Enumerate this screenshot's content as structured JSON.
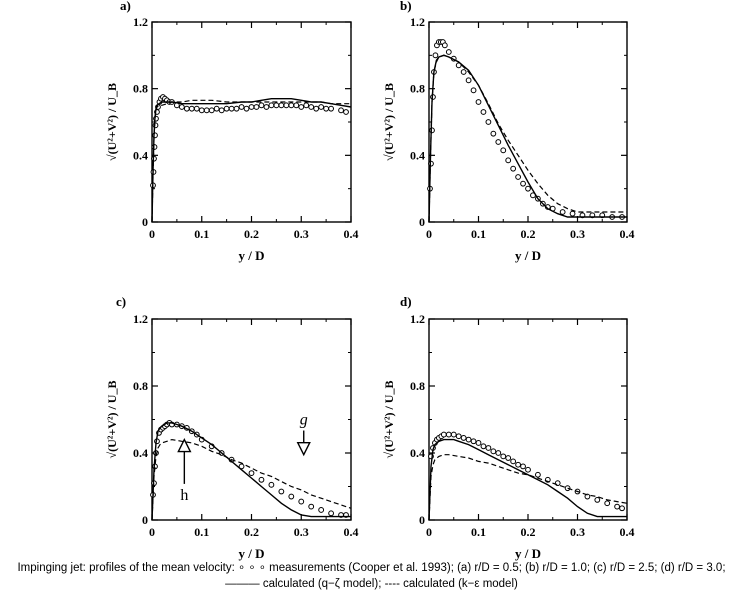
{
  "figure": {
    "caption_text": "Impinging jet: profiles of the mean velocity: ∘ ∘ ∘ measurements (Cooper et al. 1993); (a) r/D = 0.5; (b) r/D = 1.0; (c) r/D = 2.5; (d) r/D = 3.0; ——— calculated (q−ζ model); ---- calculated (k−ε model)"
  },
  "chart_data": [
    {
      "panel_label": "a)",
      "type": "line",
      "xlabel": "y / D",
      "ylabel": "√(U²+V²) / U_B",
      "xlim": [
        0,
        0.4
      ],
      "ylim": [
        0,
        1.2
      ],
      "xticks": [
        "0",
        "0.1",
        "0.2",
        "0.3",
        "0.4"
      ],
      "yticks": [
        "0",
        "0.4",
        "0.8",
        "1.2"
      ],
      "annotations": [],
      "series": [
        {
          "style": "markers-open-circle",
          "x": [
            0.002,
            0.003,
            0.004,
            0.005,
            0.006,
            0.007,
            0.008,
            0.01,
            0.012,
            0.015,
            0.018,
            0.022,
            0.026,
            0.03,
            0.035,
            0.04,
            0.05,
            0.06,
            0.07,
            0.08,
            0.09,
            0.1,
            0.11,
            0.12,
            0.13,
            0.14,
            0.15,
            0.16,
            0.17,
            0.18,
            0.19,
            0.2,
            0.21,
            0.22,
            0.23,
            0.24,
            0.25,
            0.26,
            0.27,
            0.28,
            0.29,
            0.3,
            0.31,
            0.32,
            0.33,
            0.34,
            0.35,
            0.36,
            0.38,
            0.39
          ],
          "y": [
            0.22,
            0.3,
            0.38,
            0.45,
            0.52,
            0.58,
            0.62,
            0.66,
            0.69,
            0.72,
            0.74,
            0.75,
            0.74,
            0.73,
            0.72,
            0.72,
            0.7,
            0.69,
            0.68,
            0.68,
            0.68,
            0.67,
            0.67,
            0.67,
            0.68,
            0.67,
            0.68,
            0.68,
            0.68,
            0.69,
            0.68,
            0.69,
            0.69,
            0.7,
            0.69,
            0.7,
            0.7,
            0.7,
            0.7,
            0.7,
            0.7,
            0.69,
            0.7,
            0.69,
            0.68,
            0.69,
            0.68,
            0.68,
            0.67,
            0.66
          ]
        },
        {
          "style": "solid",
          "x": [
            0,
            0.002,
            0.004,
            0.006,
            0.008,
            0.01,
            0.014,
            0.02,
            0.03,
            0.04,
            0.06,
            0.08,
            0.1,
            0.12,
            0.15,
            0.18,
            0.2,
            0.22,
            0.24,
            0.26,
            0.28,
            0.3,
            0.32,
            0.34,
            0.36,
            0.38,
            0.4
          ],
          "y": [
            0,
            0.3,
            0.52,
            0.63,
            0.68,
            0.7,
            0.71,
            0.72,
            0.72,
            0.72,
            0.71,
            0.71,
            0.71,
            0.71,
            0.71,
            0.72,
            0.72,
            0.73,
            0.74,
            0.74,
            0.74,
            0.73,
            0.72,
            0.72,
            0.71,
            0.7,
            0.69
          ]
        },
        {
          "style": "dashed",
          "x": [
            0,
            0.002,
            0.004,
            0.006,
            0.008,
            0.01,
            0.014,
            0.02,
            0.03,
            0.04,
            0.06,
            0.08,
            0.1,
            0.12,
            0.15,
            0.18,
            0.2,
            0.22,
            0.24,
            0.26,
            0.28,
            0.3,
            0.32,
            0.34,
            0.36,
            0.38,
            0.4
          ],
          "y": [
            0,
            0.28,
            0.5,
            0.62,
            0.67,
            0.69,
            0.7,
            0.7,
            0.71,
            0.72,
            0.72,
            0.73,
            0.73,
            0.73,
            0.72,
            0.72,
            0.72,
            0.72,
            0.72,
            0.72,
            0.72,
            0.72,
            0.72,
            0.72,
            0.71,
            0.71,
            0.71
          ]
        }
      ]
    },
    {
      "panel_label": "b)",
      "type": "line",
      "xlabel": "y / D",
      "ylabel": "√(U²+V²) / U_B",
      "xlim": [
        0,
        0.4
      ],
      "ylim": [
        0,
        1.2
      ],
      "xticks": [
        "0",
        "0.1",
        "0.2",
        "0.3",
        "0.4"
      ],
      "yticks": [
        "0",
        "0.4",
        "0.8",
        "1.2"
      ],
      "annotations": [],
      "series": [
        {
          "style": "markers-open-circle",
          "x": [
            0.002,
            0.004,
            0.006,
            0.008,
            0.01,
            0.013,
            0.016,
            0.02,
            0.024,
            0.028,
            0.032,
            0.04,
            0.05,
            0.06,
            0.07,
            0.08,
            0.09,
            0.1,
            0.11,
            0.12,
            0.13,
            0.14,
            0.15,
            0.16,
            0.17,
            0.18,
            0.19,
            0.2,
            0.21,
            0.22,
            0.23,
            0.24,
            0.25,
            0.27,
            0.29,
            0.31,
            0.33,
            0.35,
            0.37,
            0.39
          ],
          "y": [
            0.2,
            0.35,
            0.55,
            0.75,
            0.9,
            1.0,
            1.06,
            1.08,
            1.08,
            1.08,
            1.06,
            1.02,
            0.98,
            0.94,
            0.9,
            0.85,
            0.79,
            0.72,
            0.66,
            0.6,
            0.53,
            0.48,
            0.43,
            0.37,
            0.32,
            0.27,
            0.23,
            0.2,
            0.16,
            0.14,
            0.11,
            0.09,
            0.08,
            0.06,
            0.05,
            0.04,
            0.04,
            0.04,
            0.03,
            0.03
          ]
        },
        {
          "style": "solid",
          "x": [
            0,
            0.003,
            0.006,
            0.01,
            0.015,
            0.02,
            0.03,
            0.04,
            0.06,
            0.08,
            0.1,
            0.12,
            0.14,
            0.16,
            0.18,
            0.2,
            0.22,
            0.24,
            0.26,
            0.28,
            0.3,
            0.32,
            0.34,
            0.36,
            0.38,
            0.4
          ],
          "y": [
            0,
            0.4,
            0.72,
            0.9,
            0.97,
            0.99,
            1.0,
            0.99,
            0.96,
            0.91,
            0.82,
            0.7,
            0.58,
            0.46,
            0.35,
            0.24,
            0.14,
            0.08,
            0.05,
            0.03,
            0.03,
            0.03,
            0.03,
            0.03,
            0.03,
            0.03
          ]
        },
        {
          "style": "dashed",
          "x": [
            0,
            0.003,
            0.006,
            0.01,
            0.015,
            0.02,
            0.03,
            0.04,
            0.06,
            0.08,
            0.1,
            0.12,
            0.14,
            0.16,
            0.18,
            0.2,
            0.22,
            0.24,
            0.26,
            0.28,
            0.3,
            0.32,
            0.34,
            0.36,
            0.38,
            0.4
          ],
          "y": [
            0,
            0.4,
            0.72,
            0.9,
            0.96,
            0.99,
            1.0,
            0.99,
            0.96,
            0.9,
            0.82,
            0.71,
            0.59,
            0.49,
            0.4,
            0.31,
            0.23,
            0.16,
            0.11,
            0.08,
            0.06,
            0.06,
            0.06,
            0.06,
            0.06,
            0.06
          ]
        }
      ]
    },
    {
      "panel_label": "c)",
      "type": "line",
      "xlabel": "y / D",
      "ylabel": "√(U²+V²) / U_B",
      "xlim": [
        0,
        0.4
      ],
      "ylim": [
        0,
        1.2
      ],
      "xticks": [
        "0",
        "0.1",
        "0.2",
        "0.3",
        "0.4"
      ],
      "yticks": [
        "0",
        "0.4",
        "0.8",
        "1.2"
      ],
      "annotations": [
        {
          "text": "g",
          "x": 0.305,
          "y": 0.57,
          "arrow_to_y": 0.39,
          "arrow_head": "open-down"
        },
        {
          "text": "h",
          "x": 0.065,
          "y": 0.12,
          "arrow_to_y": 0.48,
          "arrow_head": "open-up"
        }
      ],
      "series": [
        {
          "style": "markers-open-circle",
          "x": [
            0.002,
            0.004,
            0.006,
            0.008,
            0.01,
            0.014,
            0.018,
            0.022,
            0.026,
            0.03,
            0.035,
            0.04,
            0.05,
            0.06,
            0.07,
            0.08,
            0.09,
            0.1,
            0.12,
            0.14,
            0.16,
            0.18,
            0.2,
            0.22,
            0.24,
            0.26,
            0.28,
            0.3,
            0.32,
            0.34,
            0.36,
            0.38,
            0.39
          ],
          "y": [
            0.15,
            0.22,
            0.32,
            0.4,
            0.47,
            0.52,
            0.54,
            0.55,
            0.56,
            0.57,
            0.58,
            0.57,
            0.57,
            0.56,
            0.55,
            0.53,
            0.51,
            0.48,
            0.44,
            0.4,
            0.36,
            0.32,
            0.28,
            0.24,
            0.21,
            0.17,
            0.14,
            0.11,
            0.08,
            0.06,
            0.04,
            0.03,
            0.03
          ]
        },
        {
          "style": "solid",
          "x": [
            0,
            0.004,
            0.008,
            0.012,
            0.016,
            0.02,
            0.03,
            0.04,
            0.05,
            0.06,
            0.08,
            0.1,
            0.12,
            0.14,
            0.16,
            0.18,
            0.2,
            0.22,
            0.24,
            0.26,
            0.28,
            0.3,
            0.32,
            0.34,
            0.36,
            0.38,
            0.4
          ],
          "y": [
            0,
            0.3,
            0.46,
            0.53,
            0.55,
            0.56,
            0.58,
            0.58,
            0.57,
            0.56,
            0.53,
            0.49,
            0.45,
            0.4,
            0.35,
            0.3,
            0.25,
            0.2,
            0.15,
            0.1,
            0.06,
            0.03,
            0.02,
            0.02,
            0.02,
            0.02,
            0.02
          ]
        },
        {
          "style": "dashed",
          "x": [
            0,
            0.004,
            0.008,
            0.012,
            0.016,
            0.02,
            0.03,
            0.04,
            0.06,
            0.08,
            0.1,
            0.12,
            0.14,
            0.16,
            0.18,
            0.2,
            0.22,
            0.24,
            0.26,
            0.28,
            0.3,
            0.32,
            0.34,
            0.36,
            0.38,
            0.4
          ],
          "y": [
            0,
            0.26,
            0.38,
            0.43,
            0.45,
            0.46,
            0.47,
            0.48,
            0.47,
            0.46,
            0.44,
            0.41,
            0.39,
            0.36,
            0.34,
            0.31,
            0.28,
            0.26,
            0.23,
            0.2,
            0.18,
            0.15,
            0.13,
            0.11,
            0.09,
            0.07
          ]
        }
      ]
    },
    {
      "panel_label": "d)",
      "type": "line",
      "xlabel": "y / D",
      "ylabel": "√(U²+V²) / U_B",
      "xlim": [
        0,
        0.4
      ],
      "ylim": [
        0,
        1.2
      ],
      "xticks": [
        "0",
        "0.1",
        "0.2",
        "0.3",
        "0.4"
      ],
      "yticks": [
        "0",
        "0.4",
        "0.8",
        "1.2"
      ],
      "annotations": [],
      "series": [
        {
          "style": "markers-open-circle",
          "x": [
            0.004,
            0.008,
            0.012,
            0.016,
            0.02,
            0.025,
            0.03,
            0.04,
            0.05,
            0.06,
            0.07,
            0.08,
            0.09,
            0.1,
            0.11,
            0.12,
            0.13,
            0.14,
            0.15,
            0.16,
            0.17,
            0.18,
            0.19,
            0.2,
            0.22,
            0.24,
            0.26,
            0.28,
            0.3,
            0.32,
            0.34,
            0.36,
            0.38,
            0.39
          ],
          "y": [
            0.38,
            0.43,
            0.46,
            0.48,
            0.49,
            0.5,
            0.51,
            0.51,
            0.51,
            0.5,
            0.49,
            0.48,
            0.47,
            0.46,
            0.44,
            0.43,
            0.41,
            0.4,
            0.38,
            0.37,
            0.35,
            0.33,
            0.32,
            0.3,
            0.27,
            0.24,
            0.22,
            0.19,
            0.17,
            0.14,
            0.12,
            0.1,
            0.08,
            0.07
          ]
        },
        {
          "style": "solid",
          "x": [
            0,
            0.004,
            0.008,
            0.012,
            0.016,
            0.02,
            0.03,
            0.04,
            0.05,
            0.06,
            0.08,
            0.1,
            0.12,
            0.14,
            0.16,
            0.18,
            0.2,
            0.22,
            0.24,
            0.26,
            0.28,
            0.3,
            0.32,
            0.34,
            0.36,
            0.38,
            0.4
          ],
          "y": [
            0,
            0.32,
            0.42,
            0.45,
            0.46,
            0.47,
            0.48,
            0.48,
            0.48,
            0.47,
            0.45,
            0.42,
            0.39,
            0.36,
            0.33,
            0.3,
            0.27,
            0.24,
            0.21,
            0.17,
            0.13,
            0.08,
            0.04,
            0.02,
            0.02,
            0.02,
            0.02
          ]
        },
        {
          "style": "dashed",
          "x": [
            0,
            0.004,
            0.008,
            0.012,
            0.016,
            0.02,
            0.03,
            0.04,
            0.06,
            0.08,
            0.1,
            0.12,
            0.14,
            0.16,
            0.18,
            0.2,
            0.22,
            0.24,
            0.26,
            0.28,
            0.3,
            0.32,
            0.34,
            0.36,
            0.38,
            0.4
          ],
          "y": [
            0,
            0.26,
            0.33,
            0.36,
            0.37,
            0.38,
            0.39,
            0.39,
            0.38,
            0.37,
            0.35,
            0.34,
            0.32,
            0.3,
            0.28,
            0.27,
            0.25,
            0.23,
            0.21,
            0.19,
            0.17,
            0.15,
            0.14,
            0.12,
            0.11,
            0.1
          ]
        }
      ]
    }
  ]
}
